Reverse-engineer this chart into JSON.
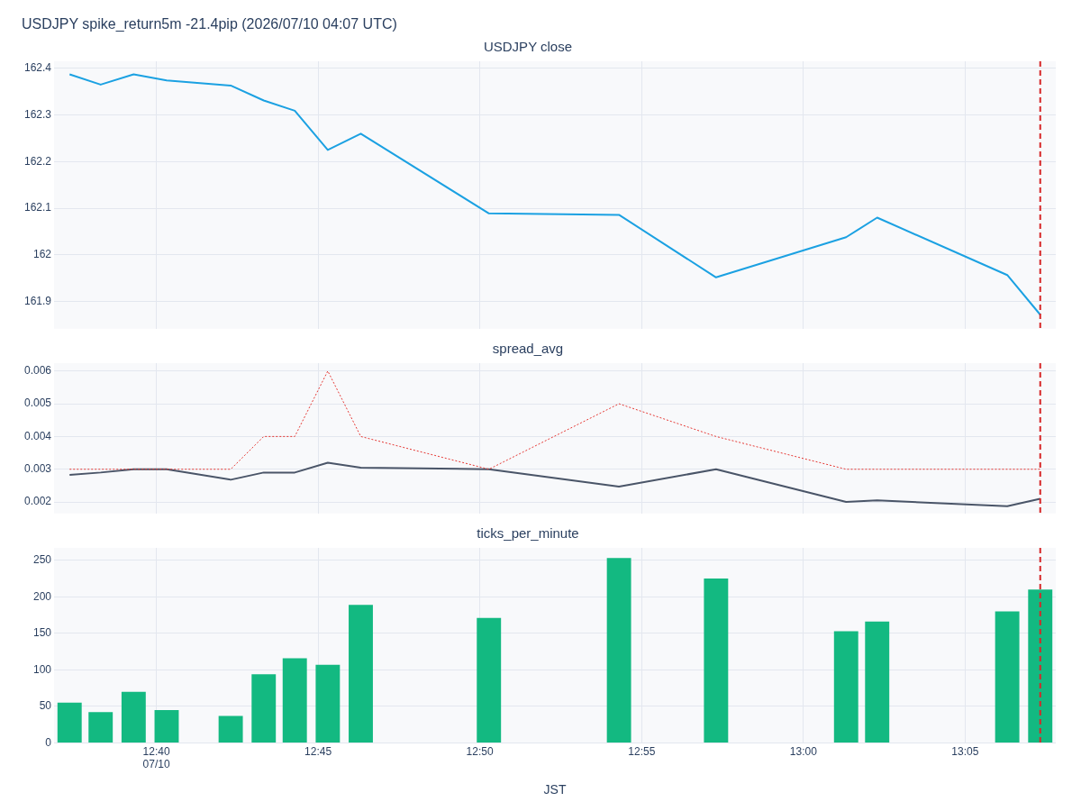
{
  "chart_data": [
    {
      "type": "line",
      "title": "USDJPY close",
      "annotations": [
        "USDJPY spike_return5m -21.4pip (2026/07/10 04:07 UTC)"
      ],
      "x": [
        12.622,
        12.638,
        12.655,
        12.672,
        12.705,
        12.722,
        12.738,
        12.755,
        12.772,
        12.838,
        12.905,
        12.955,
        13.022,
        13.038,
        13.105,
        13.122
      ],
      "series": [
        {
          "color": "#1ba1e2",
          "values": [
            162.387,
            162.365,
            162.387,
            162.374,
            162.363,
            162.331,
            162.309,
            162.225,
            162.26,
            162.089,
            162.086,
            161.952,
            162.038,
            162.08,
            161.957,
            161.872
          ]
        }
      ],
      "xlim": [
        12.614,
        13.13
      ],
      "xticks": [
        {
          "value": 12.6667,
          "label": null
        },
        {
          "value": 12.75,
          "label": null
        },
        {
          "value": 12.8333,
          "label": null
        },
        {
          "value": 12.9167,
          "label": null
        },
        {
          "value": 13.0,
          "label": null
        },
        {
          "value": 13.0833,
          "label": null
        }
      ],
      "ylim": [
        161.842,
        162.415
      ],
      "yticks": [
        161.9,
        162,
        162.1,
        162.2,
        162.3,
        162.4
      ],
      "ref_lines": [
        {
          "axis": "x",
          "value": 13.122,
          "color": "#d62728",
          "line_style": "dashed"
        }
      ],
      "grid": true,
      "legend": false,
      "marker": "none",
      "tick_labels": "y"
    },
    {
      "type": "line",
      "title": "spread_avg",
      "x": [
        12.622,
        12.638,
        12.655,
        12.672,
        12.705,
        12.722,
        12.738,
        12.755,
        12.772,
        12.838,
        12.905,
        12.955,
        13.022,
        13.038,
        13.105,
        13.122
      ],
      "series": [
        {
          "color": "#e53935",
          "line_style": "dotted",
          "values": [
            0.003,
            0.003,
            0.003,
            0.003,
            0.003,
            0.004,
            0.004,
            0.006,
            0.004,
            0.003,
            0.005,
            0.004,
            0.003,
            0.003,
            0.003,
            0.003
          ]
        },
        {
          "color": "#4a5568",
          "line_style": "solid",
          "values": [
            0.00283,
            0.0029,
            0.003,
            0.003,
            0.00268,
            0.0029,
            0.0029,
            0.0032,
            0.00305,
            0.003,
            0.00247,
            0.003,
            0.002,
            0.00205,
            0.00187,
            0.0021
          ]
        }
      ],
      "xlim": [
        12.614,
        13.13
      ],
      "xticks": [
        {
          "value": 12.6667,
          "label": null
        },
        {
          "value": 12.75,
          "label": null
        },
        {
          "value": 12.8333,
          "label": null
        },
        {
          "value": 12.9167,
          "label": null
        },
        {
          "value": 13.0,
          "label": null
        },
        {
          "value": 13.0833,
          "label": null
        }
      ],
      "ylim": [
        0.00165,
        0.00624
      ],
      "yticks": [
        0.002,
        0.003,
        0.004,
        0.005,
        0.006
      ],
      "ref_lines": [
        {
          "axis": "x",
          "value": 13.122,
          "color": "#d62728",
          "line_style": "dashed"
        }
      ],
      "grid": true,
      "legend": false,
      "marker": "none",
      "tick_labels": "y"
    },
    {
      "type": "bar",
      "title": "ticks_per_minute",
      "xlabel": "JST",
      "x": [
        12.622,
        12.638,
        12.655,
        12.672,
        12.705,
        12.722,
        12.738,
        12.755,
        12.772,
        12.838,
        12.905,
        12.955,
        13.022,
        13.038,
        13.105,
        13.122
      ],
      "series": [
        {
          "color": "#13b981",
          "values": [
            55,
            42,
            70,
            45,
            37,
            94,
            116,
            107,
            189,
            171,
            253,
            225,
            153,
            166,
            180,
            210
          ]
        }
      ],
      "xlim": [
        12.614,
        13.13
      ],
      "xticks": [
        {
          "value": 12.6667,
          "label": "12:40\n07/10"
        },
        {
          "value": 12.75,
          "label": "12:45"
        },
        {
          "value": 12.8333,
          "label": "12:50"
        },
        {
          "value": 12.9167,
          "label": "12:55"
        },
        {
          "value": 13.0,
          "label": "13:00"
        },
        {
          "value": 13.0833,
          "label": "13:05"
        }
      ],
      "ylim": [
        0,
        267
      ],
      "yticks": [
        0,
        50,
        100,
        150,
        200,
        250
      ],
      "ref_lines": [
        {
          "axis": "x",
          "value": 13.122,
          "color": "#d62728",
          "line_style": "dashed"
        }
      ],
      "grid": true,
      "legend": false
    }
  ]
}
